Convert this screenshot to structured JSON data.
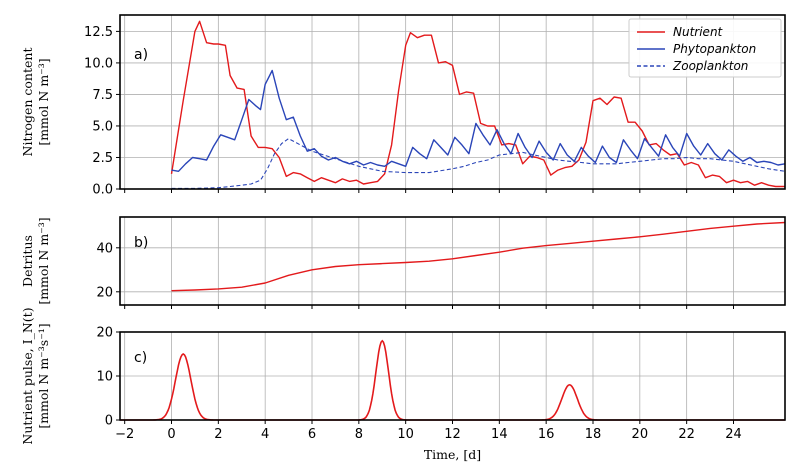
{
  "chart_data": [
    {
      "type": "line",
      "panel_label": "a)",
      "ylabel": [
        "Nitrogen content",
        "[mmol N m⁻³]"
      ],
      "xlim": [
        -2.2,
        26.2
      ],
      "ylim": [
        0,
        13.8
      ],
      "yticks": [
        "0.0",
        "2.5",
        "5.0",
        "7.5",
        "10.0",
        "12.5"
      ],
      "grid": true,
      "legend_position": "top-right",
      "series": [
        {
          "name": "Nutrient",
          "color": "#e31a1c",
          "style": "solid",
          "x": [
            0,
            0.5,
            1.0,
            1.2,
            1.5,
            1.8,
            2.0,
            2.3,
            2.5,
            2.8,
            3.1,
            3.4,
            3.7,
            4.0,
            4.3,
            4.6,
            4.9,
            5.2,
            5.5,
            5.8,
            6.1,
            6.4,
            6.7,
            7.0,
            7.3,
            7.6,
            7.9,
            8.2,
            8.5,
            8.8,
            9.1,
            9.4,
            9.7,
            10.0,
            10.2,
            10.5,
            10.8,
            11.1,
            11.4,
            11.7,
            12.0,
            12.3,
            12.6,
            12.9,
            13.2,
            13.5,
            13.8,
            14.1,
            14.4,
            14.7,
            15.0,
            15.3,
            15.6,
            15.9,
            16.2,
            16.5,
            16.8,
            17.1,
            17.4,
            17.7,
            18.0,
            18.3,
            18.6,
            18.9,
            19.2,
            19.5,
            19.8,
            20.1,
            20.4,
            20.7,
            21.0,
            21.3,
            21.6,
            21.9,
            22.2,
            22.5,
            22.8,
            23.1,
            23.4,
            23.7,
            24.0,
            24.3,
            24.6,
            24.9,
            25.2,
            25.5,
            25.8,
            26.2
          ],
          "values": [
            1.2,
            7.0,
            12.5,
            13.3,
            11.6,
            11.5,
            11.5,
            11.4,
            9.0,
            8.0,
            7.9,
            4.2,
            3.3,
            3.3,
            3.2,
            2.5,
            1.0,
            1.3,
            1.2,
            0.9,
            0.6,
            0.9,
            0.7,
            0.5,
            0.8,
            0.6,
            0.7,
            0.4,
            0.5,
            0.6,
            1.2,
            3.5,
            7.8,
            11.4,
            12.4,
            12.0,
            12.2,
            12.2,
            10.0,
            10.1,
            9.8,
            7.5,
            7.7,
            7.6,
            5.2,
            5.0,
            5.0,
            3.5,
            3.6,
            3.5,
            2.0,
            2.6,
            2.5,
            2.3,
            1.1,
            1.5,
            1.7,
            1.8,
            2.3,
            3.7,
            7.0,
            7.2,
            6.7,
            7.3,
            7.2,
            5.3,
            5.3,
            4.6,
            3.5,
            3.6,
            3.1,
            2.7,
            2.8,
            1.9,
            2.1,
            1.9,
            0.9,
            1.1,
            1.0,
            0.5,
            0.7,
            0.5,
            0.6,
            0.3,
            0.5,
            0.3,
            0.2,
            0.2
          ]
        },
        {
          "name": "Phytopankton",
          "color": "#2a45b8",
          "style": "solid",
          "x": [
            0,
            0.3,
            0.6,
            0.9,
            1.2,
            1.5,
            1.8,
            2.1,
            2.4,
            2.7,
            3.0,
            3.3,
            3.6,
            3.8,
            4.0,
            4.3,
            4.6,
            4.9,
            5.2,
            5.5,
            5.8,
            6.1,
            6.4,
            6.7,
            7.0,
            7.3,
            7.6,
            7.9,
            8.2,
            8.5,
            8.8,
            9.1,
            9.4,
            9.7,
            10.0,
            10.3,
            10.6,
            10.9,
            11.2,
            11.5,
            11.8,
            12.1,
            12.4,
            12.7,
            13.0,
            13.3,
            13.6,
            13.9,
            14.2,
            14.5,
            14.8,
            15.1,
            15.4,
            15.7,
            16.0,
            16.3,
            16.6,
            16.9,
            17.2,
            17.5,
            17.8,
            18.1,
            18.4,
            18.7,
            19.0,
            19.3,
            19.6,
            19.9,
            20.2,
            20.5,
            20.8,
            21.1,
            21.4,
            21.7,
            22.0,
            22.3,
            22.6,
            22.9,
            23.2,
            23.5,
            23.8,
            24.1,
            24.4,
            24.7,
            25.0,
            25.3,
            25.6,
            25.9,
            26.2
          ],
          "values": [
            1.5,
            1.4,
            2.0,
            2.5,
            2.4,
            2.3,
            3.4,
            4.3,
            4.1,
            3.9,
            5.5,
            7.1,
            6.6,
            6.3,
            8.3,
            9.4,
            7.2,
            5.5,
            5.7,
            4.2,
            3.0,
            3.2,
            2.6,
            2.3,
            2.5,
            2.2,
            2.0,
            2.2,
            1.9,
            2.1,
            1.9,
            1.8,
            2.2,
            2.0,
            1.8,
            3.3,
            2.8,
            2.4,
            3.9,
            3.3,
            2.7,
            4.1,
            3.5,
            2.8,
            5.2,
            4.3,
            3.5,
            4.7,
            3.6,
            2.8,
            4.4,
            3.3,
            2.5,
            3.8,
            2.9,
            2.3,
            3.6,
            2.7,
            2.2,
            3.3,
            2.6,
            2.1,
            3.4,
            2.5,
            2.1,
            3.9,
            3.1,
            2.4,
            4.0,
            3.3,
            2.6,
            4.3,
            3.3,
            2.6,
            4.4,
            3.4,
            2.7,
            3.6,
            2.8,
            2.3,
            3.1,
            2.6,
            2.2,
            2.5,
            2.1,
            2.2,
            2.1,
            1.9,
            2.0
          ]
        },
        {
          "name": "Zooplankton",
          "color": "#2a45b8",
          "style": "dashed",
          "x": [
            0,
            1.0,
            2.0,
            2.5,
            3.0,
            3.4,
            3.8,
            4.1,
            4.4,
            4.7,
            5.0,
            5.5,
            6.0,
            6.5,
            7.0,
            7.5,
            8.0,
            8.5,
            9.0,
            10.0,
            11.0,
            12.0,
            12.5,
            13.0,
            13.5,
            14.0,
            14.5,
            15.0,
            15.5,
            16.0,
            16.5,
            17.0,
            17.5,
            18.0,
            18.5,
            19.0,
            19.5,
            20.0,
            20.5,
            21.0,
            21.5,
            22.0,
            22.5,
            23.0,
            23.5,
            24.0,
            24.5,
            25.0,
            25.5,
            26.2
          ],
          "values": [
            0.05,
            0.05,
            0.1,
            0.2,
            0.3,
            0.4,
            0.7,
            1.6,
            2.8,
            3.6,
            4.0,
            3.5,
            3.0,
            2.7,
            2.4,
            2.1,
            1.8,
            1.6,
            1.4,
            1.3,
            1.3,
            1.6,
            1.8,
            2.1,
            2.3,
            2.7,
            2.8,
            2.9,
            2.7,
            2.5,
            2.3,
            2.2,
            2.1,
            2.0,
            2.0,
            2.0,
            2.1,
            2.2,
            2.3,
            2.4,
            2.4,
            2.5,
            2.4,
            2.4,
            2.3,
            2.2,
            2.0,
            1.8,
            1.6,
            1.4
          ]
        }
      ]
    },
    {
      "type": "line",
      "panel_label": "b)",
      "ylabel": [
        "Detritus",
        "[mmol N m⁻³]"
      ],
      "xlim": [
        -2.2,
        26.2
      ],
      "ylim": [
        14,
        54
      ],
      "yticks": [
        "20",
        "40"
      ],
      "grid": true,
      "series": [
        {
          "color": "#e31a1c",
          "style": "solid",
          "x": [
            0,
            1,
            2,
            3,
            4,
            5,
            6,
            7,
            8,
            9,
            10,
            11,
            12,
            13,
            14,
            15,
            16,
            17,
            18,
            19,
            20,
            21,
            22,
            23,
            24,
            25,
            26.2
          ],
          "values": [
            20.5,
            20.8,
            21.3,
            22.1,
            24.0,
            27.5,
            30.0,
            31.5,
            32.3,
            32.8,
            33.3,
            33.9,
            35.0,
            36.5,
            38.0,
            39.8,
            41.0,
            42.0,
            43.0,
            44.0,
            45.0,
            46.2,
            47.5,
            48.8,
            49.8,
            50.8,
            51.5
          ]
        }
      ]
    },
    {
      "type": "line",
      "panel_label": "c)",
      "ylabel": [
        "Nutrient pulse, I_N(t)",
        "[mmol N m⁻³s⁻¹]"
      ],
      "xlim": [
        -2.2,
        26.2
      ],
      "ylim": [
        0,
        20
      ],
      "yticks": [
        "0",
        "10",
        "20"
      ],
      "xticks": [
        "−2",
        "0",
        "2",
        "4",
        "6",
        "8",
        "10",
        "12",
        "14",
        "16",
        "18",
        "20",
        "22",
        "24"
      ],
      "xlabel": "Time, [d]",
      "grid": true,
      "pulses": [
        {
          "center": 0.5,
          "amplitude": 15,
          "sigma": 0.33
        },
        {
          "center": 9.0,
          "amplitude": 18,
          "sigma": 0.27
        },
        {
          "center": 17.0,
          "amplitude": 8,
          "sigma": 0.33
        }
      ],
      "series": [
        {
          "color": "#e31a1c",
          "style": "solid"
        }
      ]
    }
  ]
}
